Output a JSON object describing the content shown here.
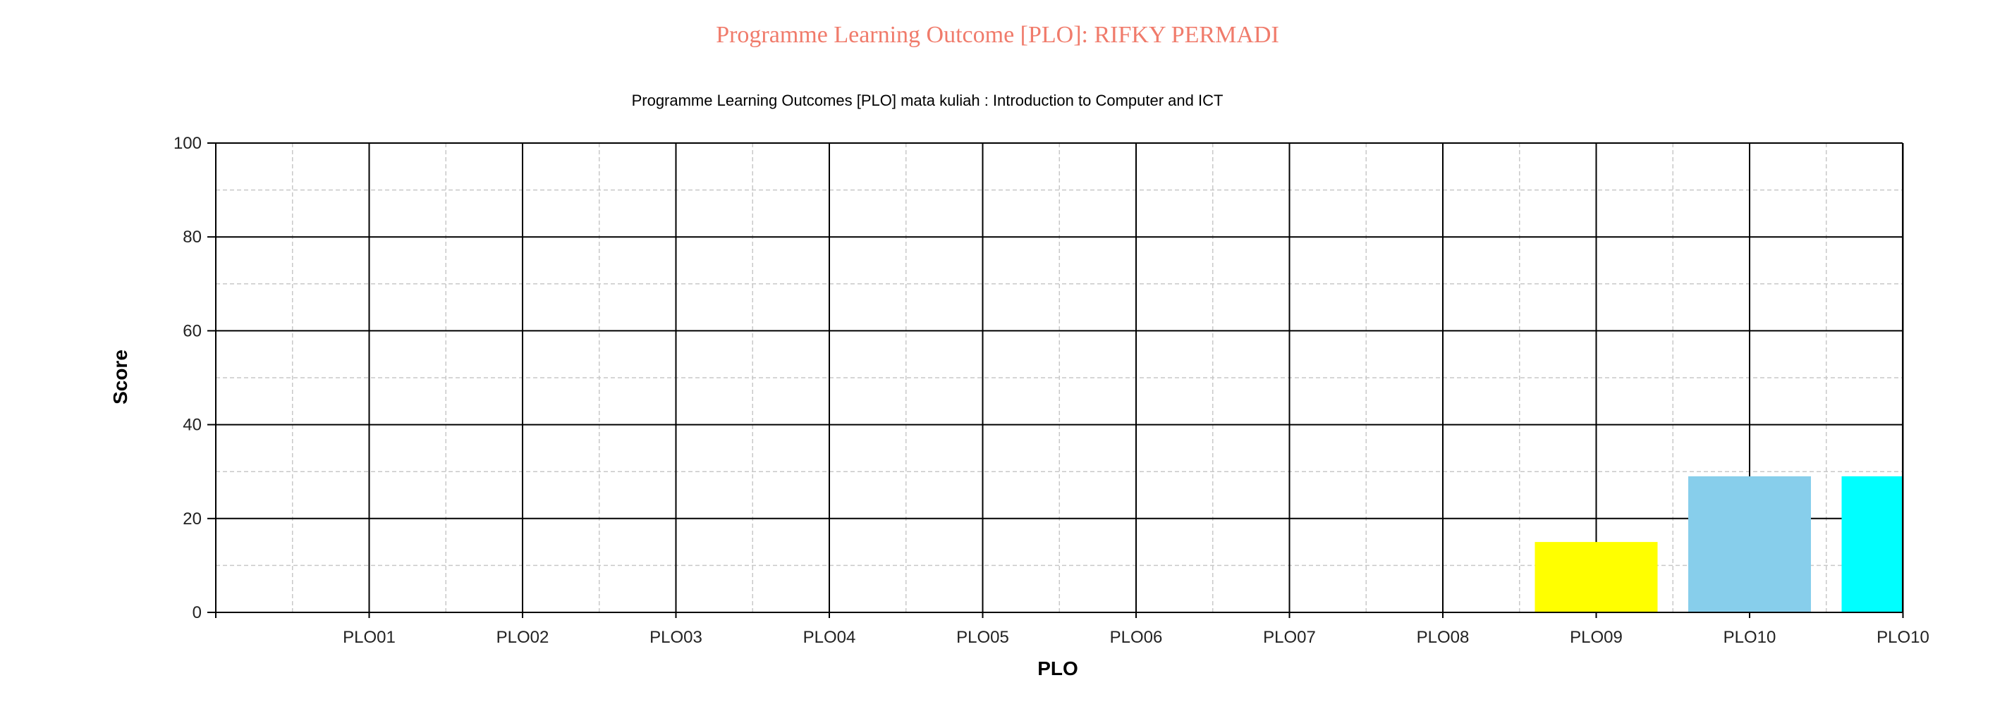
{
  "page_title": "Programme Learning Outcome [PLO]: RIFKY PERMADI",
  "chart_data": {
    "type": "bar",
    "title": "Programme Learning Outcomes [PLO] mata kuliah : Introduction to Computer and ICT",
    "xlabel": "PLO",
    "ylabel": "Score",
    "ylim": [
      0,
      100
    ],
    "y_ticks": [
      "0",
      "20",
      "40",
      "60",
      "80",
      "100"
    ],
    "y_tick_values": [
      0,
      20,
      40,
      60,
      80,
      100
    ],
    "categories": [
      "PLO01",
      "PLO02",
      "PLO03",
      "PLO04",
      "PLO05",
      "PLO06",
      "PLO07",
      "PLO08",
      "PLO09",
      "PLO10",
      "PLO10"
    ],
    "values": [
      0,
      0,
      0,
      0,
      0,
      0,
      0,
      0,
      15,
      29,
      29
    ],
    "bar_colors": [
      "#ffff00",
      "#ffff00",
      "#ffff00",
      "#ffff00",
      "#ffff00",
      "#ffff00",
      "#ffff00",
      "#ffff00",
      "#ffff00",
      "#87ceeb",
      "#00ffff"
    ],
    "grid": true,
    "legend": "none"
  }
}
